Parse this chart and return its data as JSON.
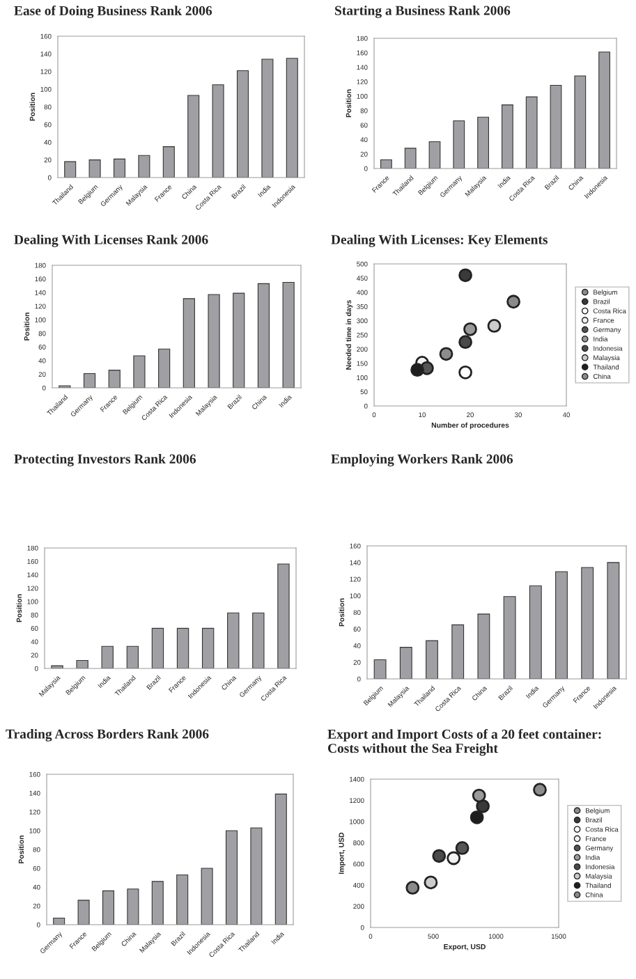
{
  "chart_data": [
    {
      "type": "bar",
      "title": "Ease of Doing Business Rank 2006",
      "ylabel": "Position",
      "categories": [
        "Thailand",
        "Belgium",
        "Germany",
        "Malaysia",
        "France",
        "China",
        "Costa Rica",
        "Brazil",
        "India",
        "Indonesia"
      ],
      "values": [
        18,
        20,
        21,
        25,
        35,
        93,
        105,
        121,
        134,
        135
      ],
      "color": "#a0a0a4",
      "ylim": [
        0,
        160
      ],
      "yticks": [
        0,
        20,
        40,
        60,
        80,
        100,
        120,
        140,
        160
      ],
      "grid": false
    },
    {
      "type": "bar",
      "title": "Starting a Business Rank 2006",
      "ylabel": "Position",
      "categories": [
        "France",
        "Thailand",
        "Belgium",
        "Germany",
        "Malaysia",
        "India",
        "Costa Rica",
        "Brazil",
        "China",
        "Indonesia"
      ],
      "values": [
        12,
        28,
        37,
        66,
        71,
        88,
        99,
        115,
        128,
        161
      ],
      "color": "#a0a0a4",
      "ylim": [
        0,
        180
      ],
      "yticks": [
        0,
        20,
        40,
        60,
        80,
        100,
        120,
        140,
        160,
        180
      ],
      "grid": false
    },
    {
      "type": "bar",
      "title": "Dealing With Licenses Rank 2006",
      "ylabel": "Position",
      "categories": [
        "Thailand",
        "Germany",
        "France",
        "Belgium",
        "Costa Rica",
        "Indonesia",
        "Malaysia",
        "Brazil",
        "China",
        "India"
      ],
      "values": [
        3,
        21,
        26,
        47,
        57,
        131,
        137,
        139,
        153,
        155
      ],
      "color": "#a0a0a4",
      "ylim": [
        0,
        180
      ],
      "yticks": [
        0,
        20,
        40,
        60,
        80,
        100,
        120,
        140,
        160,
        180
      ],
      "grid": false
    },
    {
      "type": "scatter",
      "title": "Dealing With Licenses: Key Elements",
      "xlabel": "Number of procedures",
      "ylabel": "Needed time in days",
      "xlim": [
        0,
        40
      ],
      "xticks": [
        0,
        10,
        20,
        30,
        40
      ],
      "ylim": [
        0,
        500
      ],
      "yticks": [
        0,
        50,
        100,
        150,
        200,
        250,
        300,
        350,
        400,
        450,
        500
      ],
      "marker": "circle",
      "grid": false,
      "legend": "right",
      "series": [
        {
          "name": "Belgium",
          "color": "#8c8c8c",
          "x": [
            15
          ],
          "values": [
            183
          ]
        },
        {
          "name": "Brazil",
          "color": "#3a3a3a",
          "x": [
            19
          ],
          "values": [
            460
          ]
        },
        {
          "name": "Costa Rica",
          "color": "#ffffff",
          "x": [
            19
          ],
          "values": [
            118
          ]
        },
        {
          "name": "France",
          "color": "#f2f2f2",
          "x": [
            10
          ],
          "values": [
            152
          ]
        },
        {
          "name": "Germany",
          "color": "#555555",
          "x": [
            11
          ],
          "values": [
            133
          ]
        },
        {
          "name": "India",
          "color": "#9a9a9a",
          "x": [
            20
          ],
          "values": [
            270
          ]
        },
        {
          "name": "Indonesia",
          "color": "#4a4a4a",
          "x": [
            19
          ],
          "values": [
            225
          ]
        },
        {
          "name": "Malaysia",
          "color": "#cccccc",
          "x": [
            25
          ],
          "values": [
            282
          ]
        },
        {
          "name": "Thailand",
          "color": "#1e1e1e",
          "x": [
            9
          ],
          "values": [
            127
          ]
        },
        {
          "name": "China",
          "color": "#8a8a8a",
          "x": [
            29
          ],
          "values": [
            367
          ]
        }
      ]
    },
    {
      "type": "bar",
      "title": "Protecting Investors Rank 2006",
      "ylabel": "Position",
      "categories": [
        "Malaysia",
        "Belgium",
        "India",
        "Thailand",
        "Brazil",
        "France",
        "Indonesia",
        "China",
        "Germany",
        "Costa Rica"
      ],
      "values": [
        4,
        12,
        33,
        33,
        60,
        60,
        60,
        83,
        83,
        156
      ],
      "color": "#a0a0a4",
      "ylim": [
        0,
        180
      ],
      "yticks": [
        0,
        20,
        40,
        60,
        80,
        100,
        120,
        140,
        160,
        180
      ],
      "grid": false
    },
    {
      "type": "bar",
      "title": "Employing Workers Rank 2006",
      "ylabel": "Position",
      "categories": [
        "Belgium",
        "Malaysia",
        "Thailand",
        "Costa Rica",
        "China",
        "Brazil",
        "India",
        "Germany",
        "France",
        "Indonesia"
      ],
      "values": [
        23,
        38,
        46,
        65,
        78,
        99,
        112,
        129,
        134,
        140
      ],
      "color": "#a0a0a4",
      "ylim": [
        0,
        160
      ],
      "yticks": [
        0,
        20,
        40,
        60,
        80,
        100,
        120,
        140,
        160
      ],
      "grid": false
    },
    {
      "type": "bar",
      "title": "Trading Across Borders Rank 2006",
      "ylabel": "Position",
      "categories": [
        "Germany",
        "France",
        "Belgium",
        "China",
        "Malaysia",
        "Brazil",
        "Indonesia",
        "Costa Rica",
        "Thailand",
        "India"
      ],
      "values": [
        7,
        26,
        36,
        38,
        46,
        53,
        60,
        100,
        103,
        139
      ],
      "color": "#a0a0a4",
      "ylim": [
        0,
        160
      ],
      "yticks": [
        0,
        20,
        40,
        60,
        80,
        100,
        120,
        140,
        160
      ],
      "grid": false
    },
    {
      "type": "scatter",
      "title": "Export and Import Costs of a 20 feet container:\nCosts without the Sea Freight",
      "xlabel": "Export, USD",
      "ylabel": "Import, USD",
      "xlim": [
        0,
        1500
      ],
      "xticks": [
        0,
        500,
        1000,
        1500
      ],
      "ylim": [
        0,
        1400
      ],
      "yticks": [
        0,
        200,
        400,
        600,
        800,
        1000,
        1200,
        1400
      ],
      "marker": "circle",
      "grid": false,
      "legend": "right",
      "series": [
        {
          "name": "Belgium",
          "color": "#8c8c8c",
          "x": [
            1350
          ],
          "values": [
            1300
          ]
        },
        {
          "name": "Brazil",
          "color": "#3a3a3a",
          "x": [
            895
          ],
          "values": [
            1145
          ]
        },
        {
          "name": "Costa Rica",
          "color": "#ffffff",
          "x": [
            null
          ],
          "values": [
            null
          ]
        },
        {
          "name": "France",
          "color": "#f2f2f2",
          "x": [
            662
          ],
          "values": [
            654
          ]
        },
        {
          "name": "Germany",
          "color": "#555555",
          "x": [
            731
          ],
          "values": [
            750
          ]
        },
        {
          "name": "India",
          "color": "#9a9a9a",
          "x": [
            865
          ],
          "values": [
            1245
          ]
        },
        {
          "name": "Indonesia",
          "color": "#4a4a4a",
          "x": [
            546
          ],
          "values": [
            675
          ]
        },
        {
          "name": "Malaysia",
          "color": "#cccccc",
          "x": [
            480
          ],
          "values": [
            425
          ]
        },
        {
          "name": "Thailand",
          "color": "#1e1e1e",
          "x": [
            848
          ],
          "values": [
            1040
          ]
        },
        {
          "name": "China",
          "color": "#8a8a8a",
          "x": [
            335
          ],
          "values": [
            375
          ]
        }
      ]
    }
  ]
}
